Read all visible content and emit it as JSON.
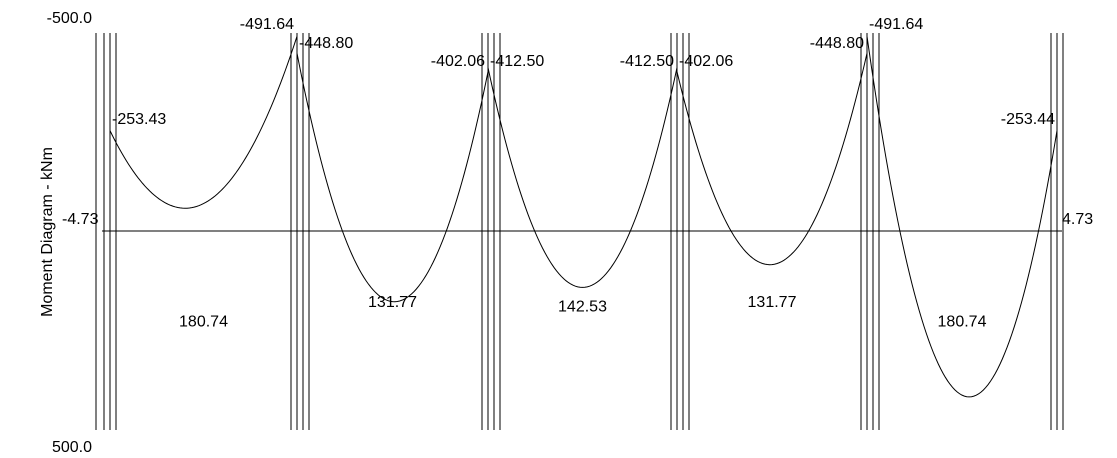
{
  "chart_data": {
    "type": "line",
    "title": "",
    "ylabel": "Moment Diagram - kNm",
    "xlabel": "",
    "y_axis_labels": {
      "top": "-500.0",
      "bottom": "500.0"
    },
    "ylim": [
      -500,
      500
    ],
    "y_inverted": true,
    "grid": false,
    "series": [
      {
        "values": [
          {
            "span": 1,
            "left_moment": -253.43,
            "max_moment": 180.74,
            "right_moment": -491.64
          },
          {
            "span": 2,
            "left_moment": -448.8,
            "max_moment": 131.77,
            "right_moment": -402.06
          },
          {
            "span": 3,
            "left_moment": -412.5,
            "max_moment": 142.53,
            "right_moment": -412.5
          },
          {
            "span": 4,
            "left_moment": -402.06,
            "max_moment": 131.77,
            "right_moment": -448.8
          },
          {
            "span": 5,
            "left_moment": -491.64,
            "max_moment": 180.74,
            "right_moment": -253.44
          }
        ]
      }
    ],
    "end_values": {
      "left": "-4.73",
      "right": "4.73"
    },
    "annotations": {
      "left_end": "-4.73",
      "right_end": "4.73",
      "supports": [
        {
          "left": "-253.43",
          "right": null
        },
        {
          "left": "-491.64",
          "right": "-448.80"
        },
        {
          "left": "-402.06",
          "right": "-412.50"
        },
        {
          "left": "-412.50",
          "right": "-402.06"
        },
        {
          "left": "-448.80",
          "right": "-491.64"
        },
        {
          "left": null,
          "right": "-253.44"
        }
      ],
      "span_maxima": [
        "180.74",
        "131.77",
        "142.53",
        "131.77",
        "180.74"
      ]
    },
    "color": "#000000"
  }
}
